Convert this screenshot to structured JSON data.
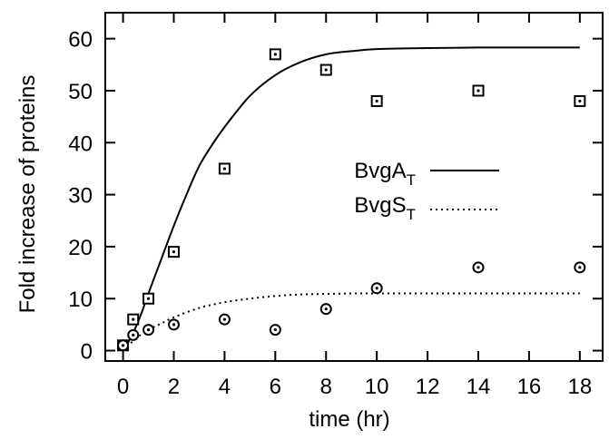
{
  "chart_data": {
    "type": "line",
    "xlabel": "time (hr)",
    "ylabel": "Fold increase of proteins",
    "xlim": [
      -0.7,
      18.9
    ],
    "ylim": [
      -2,
      65
    ],
    "x_ticks": [
      0,
      2,
      4,
      6,
      8,
      10,
      12,
      14,
      16,
      18
    ],
    "y_ticks": [
      0,
      10,
      20,
      30,
      40,
      50,
      60
    ],
    "legend": {
      "placement": "center-right",
      "entries": [
        {
          "label_main": "BvgA",
          "label_sub": "T",
          "line_style": "solid"
        },
        {
          "label_main": "BvgS",
          "label_sub": "T",
          "line_style": "dotted"
        }
      ]
    },
    "model_curves": [
      {
        "series": "BvgA_T",
        "line_style": "solid",
        "x": [
          0,
          0.25,
          0.5,
          0.75,
          1,
          1.5,
          2,
          2.5,
          3,
          3.5,
          4,
          5,
          6,
          7,
          8,
          9,
          10,
          12,
          14,
          16,
          18
        ],
        "y": [
          0,
          2,
          4.5,
          7.5,
          11,
          17.5,
          24,
          30,
          35.5,
          39.5,
          43,
          49,
          53,
          55.5,
          57,
          57.6,
          58,
          58.2,
          58.3,
          58.3,
          58.3
        ]
      },
      {
        "series": "BvgS_T",
        "line_style": "dotted",
        "x": [
          0,
          0.5,
          1,
          1.5,
          2,
          3,
          4,
          5,
          6,
          7,
          8,
          9,
          10,
          12,
          14,
          16,
          18
        ],
        "y": [
          0,
          2.3,
          4.0,
          5.2,
          6.4,
          8.2,
          9.3,
          10.0,
          10.5,
          10.8,
          10.9,
          11.0,
          11.0,
          11.0,
          11.0,
          11.0,
          11.0
        ]
      }
    ],
    "experimental_points": [
      {
        "series": "BvgA_T",
        "marker": "boxed-dot",
        "x": [
          0,
          0.4,
          1,
          2,
          4,
          6,
          8,
          10,
          14,
          18
        ],
        "y": [
          1,
          6,
          10,
          19,
          35,
          57,
          54,
          48,
          50,
          48
        ]
      },
      {
        "series": "BvgS_T",
        "marker": "circled-dot",
        "x": [
          0,
          0.4,
          1,
          2,
          4,
          6,
          8,
          10,
          14,
          18
        ],
        "y": [
          1,
          3,
          4,
          5,
          6,
          4,
          8,
          12,
          16,
          16
        ]
      }
    ]
  }
}
